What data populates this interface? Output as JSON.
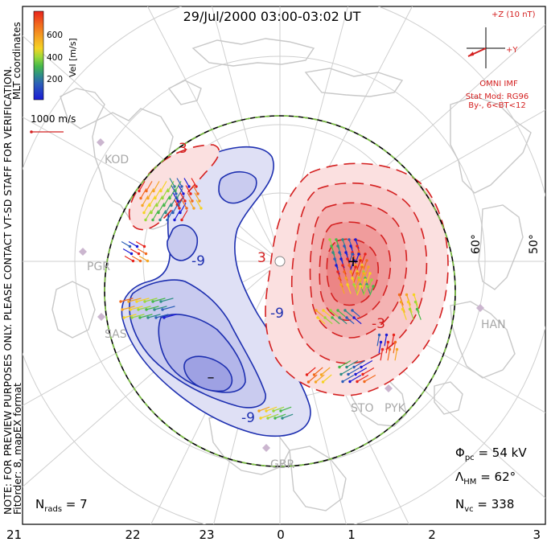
{
  "title": "29/Jul/2000 03:00-03:02 UT",
  "side_note_line1": "NOTE: FOR PREVIEW PURPOSES ONLY. PLEASE CONTACT VT-SD STAFF FOR VERIFICATION.",
  "side_note_line2": "FitOrder: 8, mapEX format",
  "coordinates_label": "MLT coordinates",
  "colorbar": {
    "label": "Vel [m/s]",
    "ticks": [
      "600",
      "400",
      "200"
    ],
    "colors": [
      "#e8231c",
      "#f26a1e",
      "#f5a623",
      "#f5d323",
      "#9ad83a",
      "#46b94a",
      "#2f8f86",
      "#2c5fb8",
      "#1a1ad6"
    ]
  },
  "scale_label": "1000 m/s",
  "imf": {
    "z_label": "+Z (10 nT)",
    "y_label": "+Y",
    "source": "OMNI IMF",
    "model_line1": "Stat Mod: RG96",
    "model_line2": "By-, 6<BT<12"
  },
  "stations": [
    "KOD",
    "PGR",
    "SAS",
    "STO",
    "PYK",
    "HAN",
    "GBR"
  ],
  "latitude_labels": [
    "60°",
    "50°"
  ],
  "contour_labels": [
    "3",
    "-9",
    "-9",
    "3",
    "-3",
    "-9"
  ],
  "stats": {
    "phi_pc_label": "Φ",
    "phi_pc_sub": "pc",
    "phi_pc_value": " = 54 kV",
    "lambda_label": "Λ",
    "lambda_sub": "HM",
    "lambda_value": " = 62°",
    "nvc_label": "N",
    "nvc_sub": "vc",
    "nvc_value": " = 338",
    "nrads_label": "N",
    "nrads_sub": "rads",
    "nrads_value": " = 7"
  },
  "mlt_labels": [
    "21",
    "22",
    "23",
    "0",
    "1",
    "2",
    "3"
  ],
  "colors": {
    "positive_contour": "#d42020",
    "negative_contour": "#1d2fb0",
    "positive_fill": "#f28a8a",
    "negative_fill": "#8f93e0",
    "hmb": "#7cc242",
    "map": "#c8c8c8"
  }
}
